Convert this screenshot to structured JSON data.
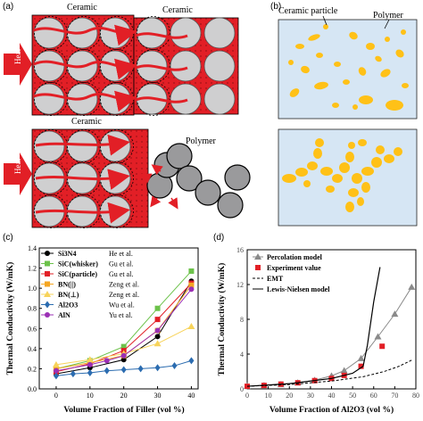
{
  "panels": {
    "a": {
      "label": "(a)",
      "top_left_material": "Ceramic",
      "top_right_material": "Ceramic",
      "bottom_material": "Ceramic",
      "bottom_right_material": "Polymer",
      "heat_label": "Heat",
      "colors": {
        "ceramic_block": "#e21f26",
        "particle_fill": "#cfcfd0",
        "polymer_particle": "#9a9a9c",
        "heat_arrow": "#e21f26"
      }
    },
    "b": {
      "label": "(b)",
      "ceramic_particle_label": "Ceramic particle",
      "polymer_label": "Polymer",
      "colors": {
        "box_fill": "#d6e6f4",
        "particle": "#ffc117"
      }
    },
    "c": {
      "label": "(c)",
      "chart_data": {
        "type": "line",
        "xlabel": "Volume Fraction of Filler (vol %)",
        "ylabel": "Thermal Conductivity (W/mK)",
        "xlim": [
          -5,
          42
        ],
        "ylim": [
          0,
          1.4
        ],
        "xticks": [
          "0",
          "10",
          "20",
          "30",
          "40"
        ],
        "yticks": [
          "0.0",
          "0.2",
          "0.4",
          "0.6",
          "0.8",
          "1.0",
          "1.2",
          "1.4"
        ],
        "legend_position": "top-left",
        "series": [
          {
            "label": "Si3N4",
            "author": "He et al.",
            "color": "#000000",
            "marker": "circle",
            "x": [
              0,
              10,
              20,
              30,
              40
            ],
            "y": [
              0.15,
              0.21,
              0.29,
              0.52,
              1.07
            ]
          },
          {
            "label": "SiC(whisker)",
            "author": "Gu et al.",
            "color": "#6cc24a",
            "marker": "square",
            "x": [
              0,
              10,
              20,
              30,
              40
            ],
            "y": [
              0.2,
              0.28,
              0.42,
              0.8,
              1.17
            ]
          },
          {
            "label": "SiC(particle)",
            "author": "Gu et al.",
            "color": "#e21f26",
            "marker": "square",
            "x": [
              0,
              10,
              20,
              30,
              40
            ],
            "y": [
              0.17,
              0.25,
              0.38,
              0.69,
              1.05
            ]
          },
          {
            "label": "BN(||)",
            "author": "Zeng et al.",
            "color": "#f5a623",
            "marker": "square",
            "x": [
              0,
              10,
              20,
              30,
              40
            ],
            "y": [
              0.2,
              0.26,
              0.33,
              0.58,
              1.03
            ]
          },
          {
            "label": "BN(⊥)",
            "author": "Zeng et al.",
            "color": "#f7d35a",
            "marker": "triangle",
            "x": [
              0,
              10,
              20,
              30,
              40
            ],
            "y": [
              0.24,
              0.29,
              0.35,
              0.45,
              0.62
            ]
          },
          {
            "label": "Al2O3",
            "author": "Wu et al.",
            "color": "#2b6cb0",
            "marker": "diamond",
            "x": [
              0,
              5,
              10,
              15,
              20,
              25,
              30,
              35,
              40
            ],
            "y": [
              0.13,
              0.15,
              0.16,
              0.18,
              0.19,
              0.2,
              0.21,
              0.23,
              0.28
            ]
          },
          {
            "label": "AlN",
            "author": "Yu et al.",
            "color": "#9b30b5",
            "marker": "circle",
            "x": [
              0,
              10,
              15,
              20,
              30,
              40
            ],
            "y": [
              0.18,
              0.24,
              0.28,
              0.33,
              0.58,
              0.99
            ]
          }
        ]
      }
    },
    "d": {
      "label": "(d)",
      "chart_data": {
        "type": "line",
        "xlabel": "Volume Fraction of Al2O3 (vol %)",
        "ylabel": "Thermal Conductivity (W/mK)",
        "xlim": [
          0,
          80
        ],
        "ylim": [
          0,
          16
        ],
        "xticks": [
          "0",
          "10",
          "20",
          "30",
          "40",
          "50",
          "60",
          "70",
          "80"
        ],
        "yticks": [
          "0",
          "4",
          "8",
          "12",
          "16"
        ],
        "legend_position": "top-left",
        "series": [
          {
            "label": "Percolation model",
            "style": "gray line with triangles",
            "color": "#8a8a8a",
            "x": [
              0,
              8,
              16,
              24,
              32,
              40,
              46,
              54,
              62,
              70,
              78
            ],
            "y": [
              0.3,
              0.4,
              0.5,
              0.7,
              1.0,
              1.5,
              2.1,
              3.5,
              6.0,
              8.6,
              11.7
            ]
          },
          {
            "label": "Experiment value",
            "style": "red squares",
            "color": "#e21f26",
            "x": [
              0,
              8,
              16,
              24,
              32,
              40,
              46,
              54,
              64
            ],
            "y": [
              0.3,
              0.4,
              0.55,
              0.7,
              0.95,
              1.2,
              1.55,
              2.6,
              4.9
            ]
          },
          {
            "label": "EMT",
            "style": "dashed",
            "color": "#000000",
            "x": [
              0,
              20,
              40,
              55,
              65,
              72,
              78
            ],
            "y": [
              0.3,
              0.5,
              0.9,
              1.4,
              2.0,
              2.6,
              3.3
            ]
          },
          {
            "label": "Lewis-Nielsen model",
            "style": "solid",
            "color": "#000000",
            "x": [
              0,
              20,
              40,
              50,
              55,
              57,
              60,
              63
            ],
            "y": [
              0.3,
              0.6,
              1.2,
              1.8,
              2.6,
              5.0,
              10.0,
              14.0
            ]
          }
        ]
      }
    }
  }
}
